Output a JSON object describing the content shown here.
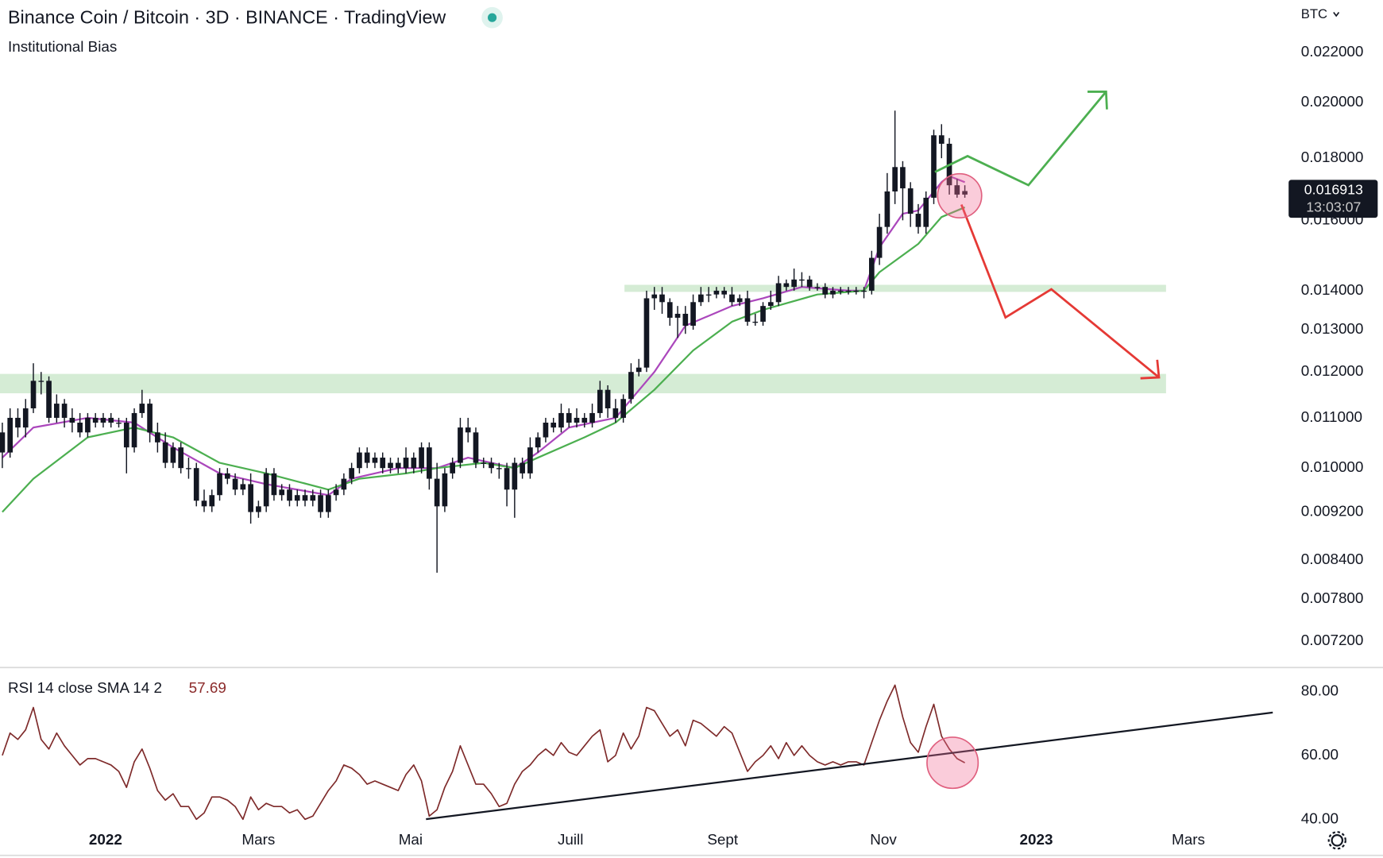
{
  "chart_data": [
    {
      "type": "candlestick",
      "title": "Binance Coin / Bitcoin · 3D · BINANCE · TradingView",
      "subtitle": "Institutional Bias",
      "currency": "BTC",
      "countdown": "13:03:07",
      "log_scale": true,
      "candle_color": "#131722",
      "ylim": [
        0.00685,
        0.0243
      ],
      "yticks": [
        {
          "value": 0.022,
          "label": "0.022000"
        },
        {
          "value": 0.02,
          "label": "0.020000"
        },
        {
          "value": 0.018,
          "label": "0.018000"
        },
        {
          "value": 0.016,
          "label": "0.016000"
        },
        {
          "value": 0.014,
          "label": "0.014000"
        },
        {
          "value": 0.013,
          "label": "0.013000"
        },
        {
          "value": 0.012,
          "label": "0.012000"
        },
        {
          "value": 0.011,
          "label": "0.011000"
        },
        {
          "value": 0.01,
          "label": "0.010000"
        },
        {
          "value": 0.0092,
          "label": "0.009200"
        },
        {
          "value": 0.0084,
          "label": "0.008400"
        },
        {
          "value": 0.0078,
          "label": "0.007800"
        },
        {
          "value": 0.0072,
          "label": "0.007200"
        }
      ],
      "xlim": [
        -0.3,
        165.6
      ],
      "xticks": [
        {
          "value": 13.3,
          "label": "2022"
        },
        {
          "value": 33,
          "label": "Mars"
        },
        {
          "value": 52.6,
          "label": "Mai"
        },
        {
          "value": 73.2,
          "label": "Juill"
        },
        {
          "value": 92.8,
          "label": "Sept"
        },
        {
          "value": 113.5,
          "label": "Nov"
        },
        {
          "value": 133.2,
          "label": "2023"
        },
        {
          "value": 152.8,
          "label": "Mars"
        }
      ],
      "open": [
        0.0107,
        0.0103,
        0.011,
        0.0108,
        0.0112,
        0.0118,
        0.0118,
        0.011,
        0.0113,
        0.011,
        0.0109,
        0.0107,
        0.011,
        0.0109,
        0.011,
        0.0109,
        0.0109,
        0.0104,
        0.0111,
        0.0113,
        0.0107,
        0.0105,
        0.0101,
        0.0104,
        0.01,
        0.01,
        0.0094,
        0.0093,
        0.0095,
        0.0099,
        0.0098,
        0.0096,
        0.0097,
        0.0092,
        0.0093,
        0.0099,
        0.0095,
        0.0096,
        0.0094,
        0.0095,
        0.0094,
        0.0095,
        0.0092,
        0.0095,
        0.0096,
        0.0098,
        0.01,
        0.0103,
        0.0101,
        0.0102,
        0.01,
        0.0101,
        0.01,
        0.0102,
        0.01,
        0.0104,
        0.0098,
        0.0093,
        0.0099,
        0.0101,
        0.0108,
        0.0107,
        0.0101,
        0.0101,
        0.01,
        0.01,
        0.0096,
        0.0101,
        0.0099,
        0.0104,
        0.0106,
        0.0109,
        0.0108,
        0.0111,
        0.0109,
        0.011,
        0.0109,
        0.0111,
        0.0116,
        0.0112,
        0.011,
        0.0114,
        0.012,
        0.0121,
        0.0138,
        0.0139,
        0.0137,
        0.0133,
        0.0134,
        0.0131,
        0.0137,
        0.0139,
        0.0139,
        0.014,
        0.0139,
        0.0137,
        0.0138,
        0.0132,
        0.0132,
        0.0136,
        0.0137,
        0.0142,
        0.0141,
        0.0143,
        0.0143,
        0.0141,
        0.0141,
        0.0139,
        0.014,
        0.014,
        0.014,
        0.014,
        0.014,
        0.0149,
        0.0158,
        0.0169,
        0.0177,
        0.017,
        0.0162,
        0.0158,
        0.0167,
        0.0188,
        0.0185,
        0.0171,
        0.0168
      ],
      "high": [
        0.0109,
        0.0112,
        0.0112,
        0.0114,
        0.0122,
        0.012,
        0.0119,
        0.0115,
        0.0114,
        0.0112,
        0.0111,
        0.0111,
        0.0111,
        0.0111,
        0.0111,
        0.011,
        0.011,
        0.0112,
        0.0116,
        0.0114,
        0.0109,
        0.0107,
        0.0105,
        0.0105,
        0.0102,
        0.0101,
        0.0096,
        0.0096,
        0.01,
        0.01,
        0.0099,
        0.0098,
        0.0099,
        0.0094,
        0.01,
        0.01,
        0.0097,
        0.0097,
        0.0096,
        0.0096,
        0.0096,
        0.0096,
        0.0096,
        0.0097,
        0.0099,
        0.0101,
        0.0104,
        0.0104,
        0.0103,
        0.0103,
        0.0102,
        0.0102,
        0.0104,
        0.0103,
        0.0105,
        0.0105,
        0.0101,
        0.01,
        0.0102,
        0.011,
        0.011,
        0.0108,
        0.0102,
        0.0102,
        0.0101,
        0.0101,
        0.0102,
        0.0102,
        0.0106,
        0.0107,
        0.011,
        0.011,
        0.0113,
        0.0112,
        0.0112,
        0.0111,
        0.0113,
        0.0118,
        0.0117,
        0.0114,
        0.0115,
        0.0122,
        0.0123,
        0.014,
        0.0141,
        0.0141,
        0.0138,
        0.0136,
        0.0136,
        0.0139,
        0.0141,
        0.0141,
        0.0141,
        0.0141,
        0.0141,
        0.0139,
        0.014,
        0.0134,
        0.0137,
        0.014,
        0.0144,
        0.0143,
        0.0146,
        0.0145,
        0.0144,
        0.0142,
        0.0142,
        0.0141,
        0.0141,
        0.0141,
        0.0141,
        0.0141,
        0.0151,
        0.0162,
        0.0175,
        0.0197,
        0.0179,
        0.0172,
        0.0165,
        0.0169,
        0.019,
        0.0192,
        0.0187,
        0.0173,
        0.0171
      ],
      "low": [
        0.01,
        0.0102,
        0.0106,
        0.0106,
        0.0111,
        0.0115,
        0.0109,
        0.0109,
        0.0108,
        0.0107,
        0.0106,
        0.0106,
        0.0108,
        0.0108,
        0.0108,
        0.0108,
        0.0099,
        0.0103,
        0.011,
        0.0105,
        0.0103,
        0.01,
        0.01,
        0.0099,
        0.0098,
        0.0093,
        0.0092,
        0.0092,
        0.0094,
        0.0097,
        0.0095,
        0.0095,
        0.009,
        0.0091,
        0.0092,
        0.0094,
        0.0094,
        0.0093,
        0.0093,
        0.0093,
        0.0093,
        0.0091,
        0.0091,
        0.0094,
        0.0095,
        0.0097,
        0.0099,
        0.01,
        0.01,
        0.0099,
        0.0099,
        0.0099,
        0.0099,
        0.0099,
        0.0099,
        0.0096,
        0.0082,
        0.0092,
        0.0098,
        0.01,
        0.0105,
        0.01,
        0.01,
        0.0099,
        0.0098,
        0.0093,
        0.0091,
        0.0098,
        0.0098,
        0.0103,
        0.0105,
        0.0107,
        0.0107,
        0.0108,
        0.0108,
        0.0108,
        0.0108,
        0.011,
        0.011,
        0.0109,
        0.0109,
        0.0113,
        0.0119,
        0.012,
        0.0135,
        0.0134,
        0.0131,
        0.0128,
        0.0129,
        0.013,
        0.0136,
        0.0137,
        0.0138,
        0.0138,
        0.0136,
        0.0136,
        0.0131,
        0.0131,
        0.0131,
        0.0135,
        0.0136,
        0.014,
        0.014,
        0.0141,
        0.014,
        0.014,
        0.0138,
        0.0138,
        0.0139,
        0.0139,
        0.0139,
        0.0138,
        0.0139,
        0.0147,
        0.0156,
        0.0165,
        0.016,
        0.0158,
        0.0156,
        0.0156,
        0.0165,
        0.018,
        0.0168,
        0.0167,
        0.0167
      ],
      "close": [
        0.0103,
        0.011,
        0.0108,
        0.0112,
        0.0118,
        0.0118,
        0.011,
        0.0113,
        0.011,
        0.0109,
        0.0107,
        0.011,
        0.0109,
        0.011,
        0.0109,
        0.0109,
        0.0104,
        0.0111,
        0.0113,
        0.0107,
        0.0105,
        0.0101,
        0.0104,
        0.01,
        0.01,
        0.0094,
        0.0093,
        0.0095,
        0.0099,
        0.0098,
        0.0096,
        0.0097,
        0.0092,
        0.0093,
        0.0099,
        0.0095,
        0.0096,
        0.0094,
        0.0095,
        0.0094,
        0.0095,
        0.0092,
        0.0095,
        0.0096,
        0.0098,
        0.01,
        0.0103,
        0.0101,
        0.0102,
        0.01,
        0.0101,
        0.01,
        0.0102,
        0.01,
        0.0104,
        0.0098,
        0.0093,
        0.0099,
        0.0101,
        0.0108,
        0.0107,
        0.0101,
        0.0101,
        0.01,
        0.01,
        0.0096,
        0.0101,
        0.0099,
        0.0104,
        0.0106,
        0.0109,
        0.0108,
        0.0111,
        0.0109,
        0.011,
        0.0109,
        0.0111,
        0.0116,
        0.0112,
        0.011,
        0.0114,
        0.012,
        0.0121,
        0.0138,
        0.0139,
        0.0137,
        0.0133,
        0.0134,
        0.0131,
        0.0137,
        0.0139,
        0.0139,
        0.014,
        0.0139,
        0.0137,
        0.0138,
        0.0132,
        0.0132,
        0.0136,
        0.0137,
        0.0142,
        0.0141,
        0.0143,
        0.0143,
        0.0141,
        0.0141,
        0.0139,
        0.014,
        0.014,
        0.014,
        0.014,
        0.014,
        0.0149,
        0.0158,
        0.0169,
        0.0177,
        0.017,
        0.0162,
        0.0158,
        0.0167,
        0.0188,
        0.0185,
        0.0171,
        0.0168,
        0.016913
      ],
      "lines": [
        {
          "color": "#ab47bc",
          "x": [
            0,
            4,
            11,
            17,
            22,
            28,
            34,
            42,
            45,
            51,
            56,
            60,
            63,
            66,
            69,
            73,
            79,
            84,
            88,
            94,
            98,
            103,
            109,
            111,
            113,
            116,
            118,
            121,
            122,
            124
          ],
          "values": [
            0.0102,
            0.0108,
            0.011,
            0.0109,
            0.0104,
            0.0099,
            0.0097,
            0.0095,
            0.0098,
            0.01,
            0.01,
            0.0102,
            0.0101,
            0.01,
            0.0103,
            0.0108,
            0.011,
            0.012,
            0.0131,
            0.0136,
            0.0138,
            0.0141,
            0.014,
            0.014,
            0.0152,
            0.0162,
            0.0163,
            0.0172,
            0.0174,
            0.0172
          ]
        },
        {
          "color": "#4caf50",
          "x": [
            0,
            4,
            11,
            17,
            22,
            28,
            34,
            42,
            46,
            52,
            56,
            62,
            66,
            69,
            75,
            79,
            84,
            89,
            94,
            98,
            105,
            111,
            113,
            118,
            121,
            124
          ],
          "values": [
            0.0092,
            0.0098,
            0.0106,
            0.0108,
            0.0106,
            0.0101,
            0.0099,
            0.0096,
            0.0098,
            0.0099,
            0.01,
            0.0101,
            0.01,
            0.0102,
            0.0106,
            0.0109,
            0.0116,
            0.0125,
            0.0132,
            0.0135,
            0.0139,
            0.014,
            0.0145,
            0.0153,
            0.0161,
            0.0164
          ]
        }
      ]
    },
    {
      "type": "line",
      "title": "RSI 14 close SMA 14 2",
      "ylim": [
        37,
        87.5
      ],
      "yticks": [
        {
          "value": 80,
          "label": "80.00"
        },
        {
          "value": 60,
          "label": "60.00"
        },
        {
          "value": 40,
          "label": "40.00"
        }
      ],
      "series": [
        {
          "color": "#7e2a2a",
          "values": [
            60,
            67,
            65,
            68,
            75,
            65,
            62,
            67,
            63,
            60,
            57,
            59,
            59,
            58,
            57,
            55,
            50,
            58,
            62,
            56,
            49,
            46,
            48,
            44,
            44,
            40,
            42,
            47,
            47,
            46,
            44,
            40,
            47,
            43,
            45,
            44,
            44,
            42,
            43,
            40,
            41,
            45,
            49,
            52,
            57,
            56,
            54,
            51,
            52,
            51,
            50,
            49,
            54,
            57,
            52,
            41,
            43,
            50,
            55,
            63,
            57,
            51,
            51,
            48,
            44,
            45,
            51,
            55,
            57,
            60,
            62,
            60,
            64,
            61,
            60,
            63,
            66,
            68,
            58,
            60,
            67,
            62,
            66,
            75,
            74,
            70,
            66,
            68,
            63,
            71,
            70,
            68,
            66,
            69,
            67,
            61,
            55,
            58,
            60,
            63,
            59,
            64,
            60,
            63,
            60,
            58,
            57,
            58,
            57,
            58,
            58,
            57,
            64,
            71,
            77,
            82,
            72,
            64,
            61,
            69,
            76,
            66,
            62,
            59,
            57.69
          ]
        }
      ]
    }
  ]
}
